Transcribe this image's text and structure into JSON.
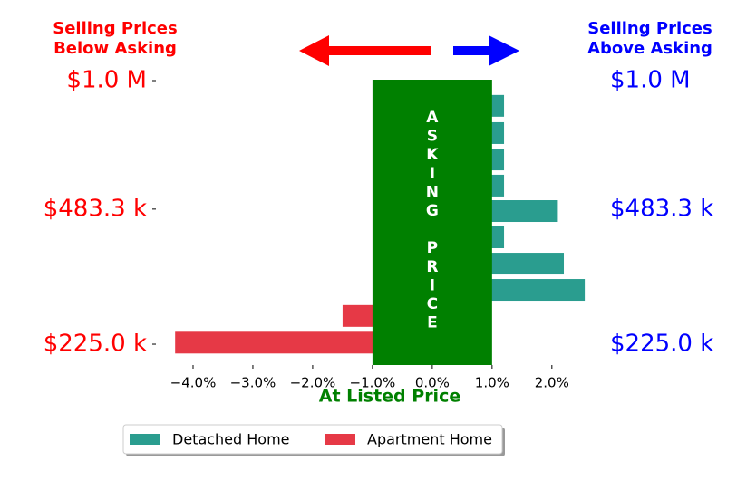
{
  "chart_data": {
    "type": "bar",
    "left_title": [
      "Selling Prices",
      "Below Asking"
    ],
    "right_title": [
      "Selling Prices",
      "Above Asking"
    ],
    "band_label": "ASKING PRICE",
    "xlabel": "At Listed Price",
    "series": [
      {
        "name": "Detached Home",
        "color": "#2a9d8f",
        "values": [
          1.2,
          1.2,
          1.2,
          1.2,
          2.1,
          1.2,
          2.2,
          2.55
        ],
        "y": [
          867000,
          743000,
          640000,
          552000,
          478000,
          412000,
          355000,
          306000
        ]
      },
      {
        "name": "Apartment Home",
        "color": "#e63946",
        "values": [
          -1.5,
          -4.3
        ],
        "y": [
          264000,
          227000
        ]
      }
    ],
    "asking_band": [
      -1,
      1
    ],
    "band_color": "#008000",
    "xlim": [
      -4.5,
      2.7
    ],
    "xticks": [
      {
        "value": -4,
        "label": "−4.0%"
      },
      {
        "value": -3,
        "label": "−3.0%"
      },
      {
        "value": -2,
        "label": "−2.0%"
      },
      {
        "value": -1,
        "label": "−1.0%"
      },
      {
        "value": 0,
        "label": "0.0%"
      },
      {
        "value": 1,
        "label": "1.0%"
      },
      {
        "value": 2,
        "label": "2.0%"
      }
    ],
    "ylim": [
      200000,
      1000000
    ],
    "ylog": true,
    "yticks": [
      {
        "value": 1000000,
        "label": "$1.0 M"
      },
      {
        "value": 483300,
        "label": "$483.3 k"
      },
      {
        "value": 225000,
        "label": "$225.0 k"
      }
    ],
    "legend": "bottom"
  }
}
